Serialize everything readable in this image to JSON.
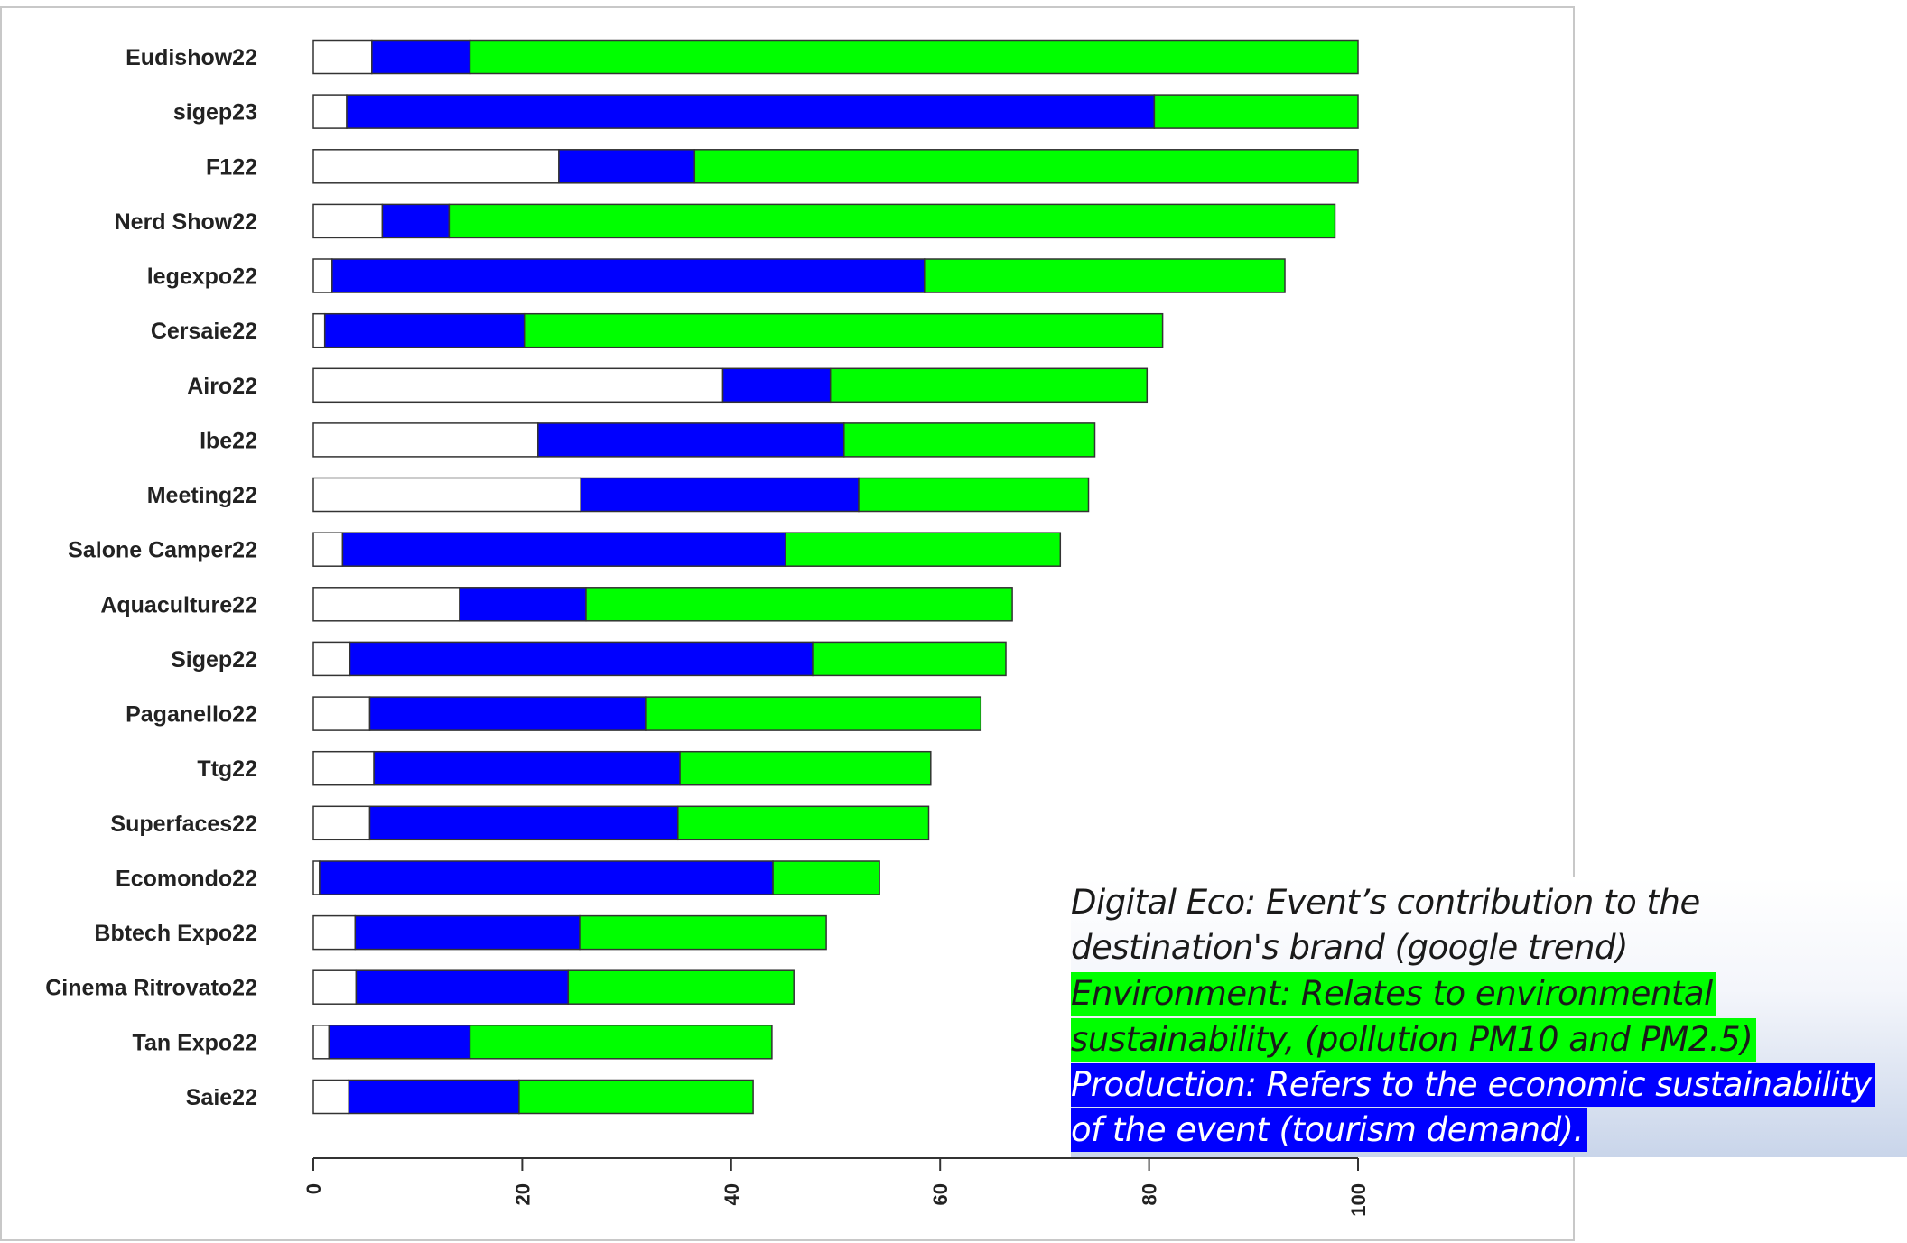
{
  "chart_data": {
    "type": "bar",
    "orientation": "horizontal",
    "stacked": true,
    "categories": [
      "Eudishow22",
      "sigep23",
      "F122",
      "Nerd Show22",
      "legexpo22",
      "Cersaie22",
      "Airo22",
      "Ibe22",
      "Meeting22",
      "Salone Camper22",
      "Aquaculture22",
      "Sigep22",
      "Paganello22",
      "Ttg22",
      "Superfaces22",
      "Ecomondo22",
      "Bbtech Expo22",
      "Cinema Ritrovato22",
      "Tan Expo22",
      "Saie22"
    ],
    "series": [
      {
        "color": "#ffffff",
        "values": [
          5.6,
          3.2,
          23.5,
          6.6,
          1.8,
          1.1,
          39.2,
          21.5,
          25.6,
          2.8,
          14.0,
          3.5,
          5.4,
          5.8,
          5.4,
          0.6,
          4.0,
          4.1,
          1.5,
          3.4
        ]
      },
      {
        "color": "#0000ff",
        "values": [
          9.4,
          77.3,
          13.0,
          6.4,
          56.7,
          19.1,
          10.3,
          29.3,
          26.6,
          42.4,
          12.1,
          44.3,
          26.4,
          29.3,
          29.5,
          43.4,
          21.5,
          20.3,
          13.5,
          16.3
        ]
      },
      {
        "color": "#00ff00",
        "values": [
          85.0,
          19.5,
          63.5,
          84.8,
          34.5,
          61.1,
          30.3,
          24.0,
          22.0,
          26.3,
          40.8,
          18.5,
          32.1,
          24.0,
          24.0,
          10.2,
          23.6,
          21.6,
          28.9,
          22.4
        ]
      }
    ],
    "xlim": [
      0,
      100
    ],
    "xticks": [
      "0",
      "20",
      "40",
      "60",
      "80",
      "100"
    ],
    "grid": false
  },
  "legend": {
    "digital_line1": "Digital Eco: Event’s contribution to the",
    "digital_line2": "destination's brand (google trend)",
    "environment_line1": "Environment: Relates to environmental",
    "environment_line2": "sustainability, (pollution PM10 and PM2.5)",
    "production_line1": "Production: Refers to the economic sustainability",
    "production_line2": "of the event (tourism demand).",
    "environment_color": "#00ff00",
    "production_color": "#0000ff"
  }
}
